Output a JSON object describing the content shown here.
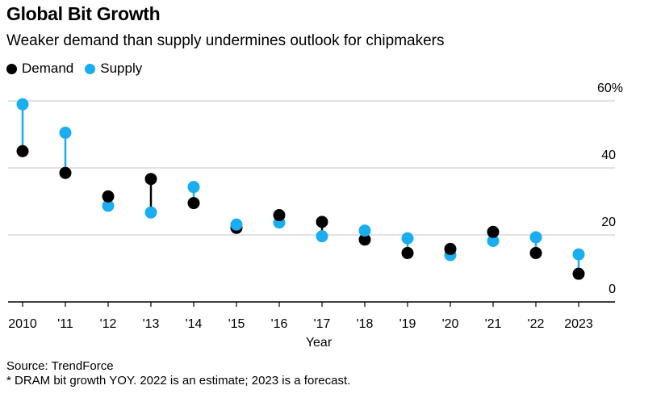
{
  "chart_data": {
    "type": "scatter",
    "subtype": "dumbbell",
    "title": "Global Bit Growth",
    "subtitle": "Weaker demand than supply undermines outlook for chipmakers",
    "xlabel": "Year",
    "ylabel": "",
    "categories": [
      "2010",
      "'11",
      "'12",
      "'13",
      "'14",
      "'15",
      "'16",
      "'17",
      "'18",
      "'19",
      "'20",
      "'21",
      "'22",
      "2023"
    ],
    "series": [
      {
        "name": "Demand",
        "color": "#000000",
        "values": [
          45,
          38.5,
          31.5,
          36.7,
          29.5,
          22.1,
          25.9,
          23.9,
          18.6,
          14.6,
          15.8,
          20.9,
          14.6,
          8.4
        ]
      },
      {
        "name": "Supply",
        "color": "#1AADF0",
        "values": [
          59,
          50.5,
          28.7,
          26.7,
          34.3,
          23.1,
          23.7,
          19.6,
          21.3,
          19,
          14,
          18.2,
          19.3,
          14.2
        ]
      }
    ],
    "ylim": [
      0,
      60
    ],
    "yticks": [
      0,
      20,
      40,
      60
    ],
    "ytick_labels": [
      "0",
      "20",
      "40",
      "60%"
    ],
    "y_axis_side": "right",
    "grid": true,
    "legend_position": "top-left"
  },
  "header": {
    "title": "Global Bit Growth",
    "subtitle": "Weaker demand than supply undermines outlook for chipmakers"
  },
  "legend": {
    "items": [
      {
        "label": "Demand",
        "color": "#000000"
      },
      {
        "label": "Supply",
        "color": "#1AADF0"
      }
    ]
  },
  "footer": {
    "source": "Source: TrendForce",
    "note": "* DRAM bit growth YOY. 2022 is an estimate; 2023 is a forecast."
  }
}
